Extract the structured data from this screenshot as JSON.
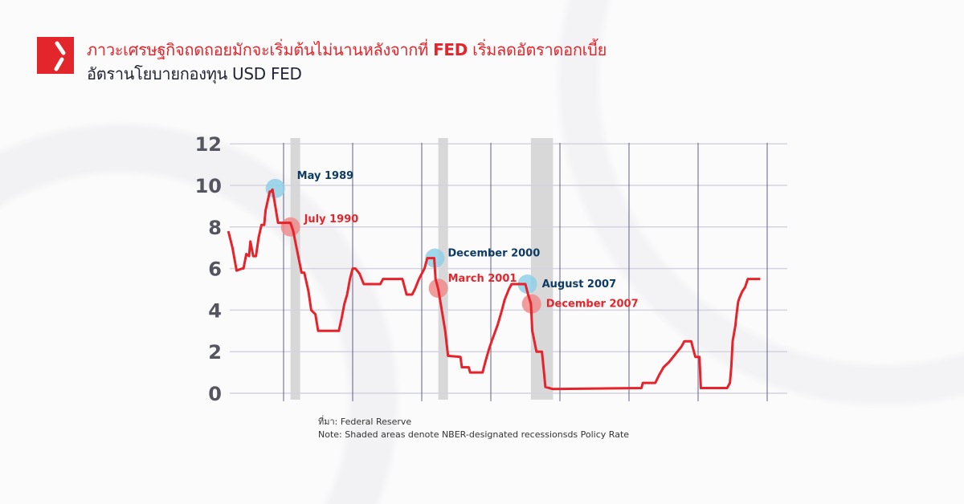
{
  "header": {
    "title_prefix": "ภาวะเศรษฐกิจถดถอยมักจะเริ่มต้นไม่นานหลังจากที่",
    "title_bold": "FED",
    "title_suffix": "เริ่มลดอัตราดอกเบี้ย",
    "subtitle": "อัตรานโยบายกองทุน USD FED"
  },
  "colors": {
    "brand": "#e3262b",
    "line": "#e8222a",
    "annotation_blue": "#0d3b63",
    "annotation_red": "#e3262b",
    "marker_blue": "#8fd0e6",
    "marker_red": "#ef8c8c",
    "recession": "#d0d0d0"
  },
  "footer": {
    "source": "ที่มา: Federal Reserve",
    "note": "Note: Shaded areas denote NBER-designated recessionsds Policy Rate"
  },
  "chart_data": {
    "type": "line",
    "title": "",
    "xlabel": "",
    "ylabel": "",
    "ylim": [
      0,
      12
    ],
    "xlim": [
      1986,
      2028
    ],
    "yticks": [
      "0",
      "2",
      "4",
      "6",
      "8",
      "10",
      "12"
    ],
    "x_gridlines": [
      1990,
      1995,
      2000,
      2005,
      2010,
      2015,
      2020,
      2025
    ],
    "grid": true,
    "x_tick_labels_shown": false,
    "recessions": [
      [
        1990.5,
        1991.2
      ],
      [
        2001.2,
        2001.9
      ],
      [
        2007.9,
        2009.5
      ]
    ],
    "series": [
      {
        "x": [
          1986.0,
          1986.3,
          1986.6,
          1987.0,
          1987.1,
          1987.3,
          1987.5,
          1987.6,
          1987.8,
          1988.0,
          1988.2,
          1988.4,
          1988.6,
          1988.7,
          1989.0,
          1989.1,
          1989.2,
          1989.4,
          1989.6,
          1989.9,
          1990.5,
          1990.7,
          1991.0,
          1991.3,
          1991.5,
          1991.8,
          1992.0,
          1992.3,
          1992.5,
          1993.0,
          1994.0,
          1994.2,
          1994.4,
          1994.6,
          1994.8,
          1995.0,
          1995.2,
          1995.5,
          1995.8,
          1996.1,
          1997.0,
          1997.2,
          1998.6,
          1998.8,
          1998.9,
          1999.3,
          1999.5,
          1999.8,
          2000.2,
          2000.4,
          2000.9,
          2001.0,
          2001.2,
          2001.5,
          2001.7,
          2001.9,
          2002.8,
          2002.9,
          2003.4,
          2003.5,
          2004.4,
          2004.6,
          2004.9,
          2005.2,
          2005.5,
          2005.8,
          2006.0,
          2006.3,
          2006.5,
          2007.5,
          2007.7,
          2007.9,
          2008.0,
          2008.3,
          2008.7,
          2008.85,
          2008.95,
          2009.5,
          2015.9,
          2016.0,
          2016.9,
          2017.2,
          2017.5,
          2017.9,
          2018.2,
          2018.5,
          2018.8,
          2019.0,
          2019.5,
          2019.7,
          2019.8,
          2020.1,
          2020.2,
          2022.1,
          2022.3,
          2022.4,
          2022.5,
          2022.7,
          2022.8,
          2022.9,
          2023.0,
          2023.2,
          2023.4,
          2023.6,
          2024.5
        ],
        "values": [
          7.8,
          7.0,
          5.9,
          6.0,
          6.0,
          6.7,
          6.6,
          7.3,
          6.6,
          6.6,
          7.5,
          8.1,
          8.1,
          8.8,
          9.7,
          9.7,
          9.8,
          9.0,
          8.2,
          8.2,
          8.2,
          7.8,
          6.8,
          5.8,
          5.8,
          4.9,
          4.0,
          3.8,
          3.0,
          3.0,
          3.0,
          3.6,
          4.3,
          4.75,
          5.5,
          6.0,
          6.0,
          5.75,
          5.25,
          5.25,
          5.25,
          5.5,
          5.5,
          5.0,
          4.75,
          4.75,
          5.0,
          5.5,
          6.0,
          6.5,
          6.5,
          5.5,
          5.0,
          3.8,
          3.0,
          1.8,
          1.75,
          1.25,
          1.25,
          1.0,
          1.0,
          1.5,
          2.2,
          2.75,
          3.3,
          4.0,
          4.5,
          5.0,
          5.25,
          5.25,
          4.75,
          4.3,
          3.0,
          2.0,
          2.0,
          1.0,
          0.3,
          0.2,
          0.25,
          0.5,
          0.5,
          0.9,
          1.25,
          1.5,
          1.75,
          2.0,
          2.25,
          2.5,
          2.5,
          2.0,
          1.75,
          1.75,
          0.25,
          0.25,
          0.5,
          1.25,
          2.5,
          3.25,
          3.9,
          4.4,
          4.6,
          4.9,
          5.1,
          5.5,
          5.5
        ]
      }
    ],
    "annotations": [
      {
        "label": "May 1989",
        "x": 1989.4,
        "y": 9.85,
        "color": "blue"
      },
      {
        "label": "July 1990",
        "x": 1990.5,
        "y": 8.0,
        "color": "red"
      },
      {
        "label": "December 2000",
        "x": 2000.95,
        "y": 6.5,
        "color": "blue"
      },
      {
        "label": "March 2001",
        "x": 2001.2,
        "y": 5.05,
        "color": "red"
      },
      {
        "label": "August 2007",
        "x": 2007.65,
        "y": 5.25,
        "color": "blue"
      },
      {
        "label": "December 2007",
        "x": 2007.95,
        "y": 4.3,
        "color": "red"
      }
    ]
  }
}
